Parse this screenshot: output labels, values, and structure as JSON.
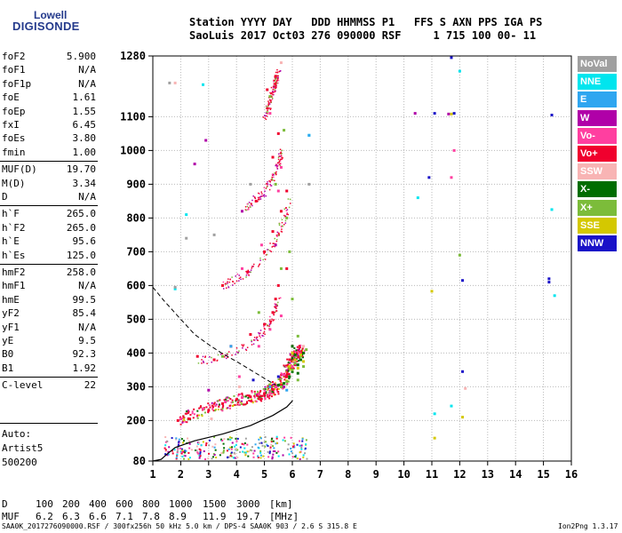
{
  "logo": {
    "line1": "Lowell",
    "line2": "DIGISONDE"
  },
  "header": {
    "line1": "Station YYYY DAY   DDD HHMMSS P1   FFS S AXN PPS IGA PS",
    "line2": "SaoLuis 2017 Oct03 276 090000 RSF     1 715 100 00- 11"
  },
  "params": [
    {
      "label": "foF2",
      "value": "5.900"
    },
    {
      "label": "foF1",
      "value": "N/A"
    },
    {
      "label": "foF1p",
      "value": "N/A"
    },
    {
      "label": "foE",
      "value": "1.61"
    },
    {
      "label": "foEp",
      "value": "1.55"
    },
    {
      "label": "fxI",
      "value": "6.45"
    },
    {
      "label": "foEs",
      "value": "3.80"
    },
    {
      "label": "fmin",
      "value": "1.00"
    },
    {
      "label": "MUF(D)",
      "value": "19.70"
    },
    {
      "label": "M(D)",
      "value": "3.34"
    },
    {
      "label": "D",
      "value": "N/A"
    },
    {
      "label": "h`F",
      "value": "265.0"
    },
    {
      "label": "h`F2",
      "value": "265.0"
    },
    {
      "label": "h`E",
      "value": "95.6"
    },
    {
      "label": "h`Es",
      "value": "125.0"
    },
    {
      "label": "hmF2",
      "value": "258.0"
    },
    {
      "label": "hmF1",
      "value": "N/A"
    },
    {
      "label": "hmE",
      "value": "99.5"
    },
    {
      "label": "yF2",
      "value": "85.4"
    },
    {
      "label": "yF1",
      "value": "N/A"
    },
    {
      "label": "yE",
      "value": "9.5"
    },
    {
      "label": "B0",
      "value": "92.3"
    },
    {
      "label": "B1",
      "value": "1.92"
    },
    {
      "label": "C-level",
      "value": "22"
    }
  ],
  "autoscaling": {
    "line1": "Auto:",
    "line2": "Artist5",
    "line3": "500200"
  },
  "legend": [
    {
      "label": "NoVal",
      "color": "#a0a0a0"
    },
    {
      "label": "NNE",
      "color": "#00e5ee"
    },
    {
      "label": "E",
      "color": "#2fa6f0"
    },
    {
      "label": "W",
      "color": "#b000a8"
    },
    {
      "label": "Vo-",
      "color": "#ff3fa0"
    },
    {
      "label": "Vo+",
      "color": "#f0002e"
    },
    {
      "label": "SSW",
      "color": "#f8b4b4"
    },
    {
      "label": "X-",
      "color": "#006d00"
    },
    {
      "label": "X+",
      "color": "#7cbc3a"
    },
    {
      "label": "SSE",
      "color": "#d4c800"
    },
    {
      "label": "NNW",
      "color": "#1a12c8"
    }
  ],
  "muf_table": {
    "row1_label": "D",
    "row1_values": [
      "100",
      "200",
      "400",
      "600",
      "800",
      "1000",
      "1500",
      "3000",
      "[km]"
    ],
    "row2_label": "MUF",
    "row2_values": [
      "6.2",
      "6.3",
      "6.6",
      "7.1",
      "7.8",
      "8.9",
      "11.9",
      "19.7",
      "[MHz]"
    ]
  },
  "footer": {
    "left": "SAA0K_2017276090000.RSF / 300fx256h 50 kHz 5.0 km / DPS-4 SAA0K 903 / 2.6 S 315.8 E",
    "right": "Ion2Png 1.3.17"
  },
  "chart_data": {
    "type": "scatter",
    "xlim": [
      1,
      16
    ],
    "ylim": [
      80,
      1280
    ],
    "x_ticks": [
      1,
      2,
      3,
      4,
      5,
      6,
      7,
      8,
      9,
      10,
      11,
      12,
      13,
      14,
      15,
      16
    ],
    "y_ticks": [
      80,
      200,
      300,
      400,
      500,
      600,
      700,
      800,
      900,
      1000,
      1100,
      1280
    ],
    "grid": true,
    "legend_position": "right",
    "series": [
      {
        "name": "Vo+",
        "points": [
          [
            1.9,
            200
          ],
          [
            2.3,
            205
          ],
          [
            3.0,
            230
          ],
          [
            3.5,
            250
          ],
          [
            4.0,
            262
          ],
          [
            4.5,
            270
          ],
          [
            5.0,
            280
          ],
          [
            5.3,
            292
          ],
          [
            5.6,
            305
          ],
          [
            5.8,
            330
          ],
          [
            5.9,
            380
          ],
          [
            6.0,
            420
          ],
          [
            2.6,
            390
          ],
          [
            3.2,
            380
          ],
          [
            3.8,
            420
          ],
          [
            4.5,
            455
          ],
          [
            5.0,
            485
          ],
          [
            5.3,
            520
          ],
          [
            5.4,
            560
          ],
          [
            5.5,
            600
          ],
          [
            5.8,
            650
          ],
          [
            3.5,
            600
          ],
          [
            4.4,
            640
          ],
          [
            5.0,
            700
          ],
          [
            5.3,
            760
          ],
          [
            5.6,
            820
          ],
          [
            5.8,
            880
          ],
          [
            4.7,
            850
          ],
          [
            5.3,
            980
          ],
          [
            5.5,
            1050
          ],
          [
            5.1,
            1180
          ],
          [
            5.4,
            1220
          ]
        ]
      },
      {
        "name": "Vo-",
        "points": [
          [
            2.0,
            205
          ],
          [
            2.8,
            235
          ],
          [
            3.6,
            255
          ],
          [
            4.2,
            268
          ],
          [
            4.8,
            278
          ],
          [
            5.4,
            300
          ],
          [
            5.7,
            335
          ],
          [
            6.0,
            360
          ],
          [
            4.1,
            330
          ],
          [
            4.8,
            420
          ],
          [
            5.2,
            470
          ],
          [
            5.6,
            510
          ],
          [
            4.2,
            650
          ],
          [
            4.9,
            720
          ],
          [
            5.5,
            880
          ],
          [
            5.6,
            950
          ],
          [
            5.2,
            1110
          ],
          [
            11.8,
            1000
          ],
          [
            11.7,
            920
          ]
        ]
      },
      {
        "name": "X-",
        "points": [
          [
            5.7,
            310
          ],
          [
            5.9,
            330
          ],
          [
            6.0,
            345
          ],
          [
            6.2,
            365
          ],
          [
            6.3,
            380
          ],
          [
            6.1,
            395
          ],
          [
            6.4,
            400
          ],
          [
            6.2,
            340
          ],
          [
            5.5,
            305
          ],
          [
            6.0,
            420
          ]
        ]
      },
      {
        "name": "X+",
        "points": [
          [
            5.6,
            300
          ],
          [
            5.8,
            315
          ],
          [
            6.0,
            350
          ],
          [
            6.1,
            370
          ],
          [
            6.3,
            390
          ],
          [
            6.5,
            410
          ],
          [
            6.4,
            360
          ],
          [
            6.2,
            320
          ],
          [
            5.6,
            650
          ],
          [
            5.9,
            700
          ],
          [
            5.8,
            800
          ],
          [
            5.4,
            900
          ],
          [
            6.0,
            560
          ],
          [
            5.7,
            1060
          ],
          [
            12.0,
            690
          ],
          [
            3.5,
            390
          ],
          [
            4.8,
            520
          ],
          [
            6.2,
            450
          ],
          [
            5.2,
            1160
          ]
        ]
      },
      {
        "name": "SSE",
        "points": [
          [
            5.9,
            360
          ],
          [
            6.1,
            380
          ],
          [
            6.3,
            395
          ],
          [
            6.0,
            400
          ],
          [
            6.4,
            375
          ],
          [
            6.2,
            355
          ],
          [
            11.7,
            1108
          ],
          [
            11.0,
            583
          ],
          [
            12.1,
            210
          ],
          [
            11.1,
            148
          ]
        ]
      },
      {
        "name": "SSW",
        "points": [
          [
            3.1,
            205
          ],
          [
            4.1,
            300
          ],
          [
            5.6,
            1260
          ],
          [
            12.2,
            295
          ],
          [
            6.4,
            420
          ],
          [
            1.8,
            1200
          ]
        ]
      },
      {
        "name": "W",
        "points": [
          [
            4.2,
            820
          ],
          [
            5.4,
            720
          ],
          [
            2.9,
            1030
          ],
          [
            2.5,
            960
          ],
          [
            10.4,
            1110
          ],
          [
            11.6,
            1108
          ],
          [
            3.0,
            290
          ],
          [
            5.7,
            300
          ]
        ]
      },
      {
        "name": "NNE",
        "points": [
          [
            12.0,
            1235
          ],
          [
            10.5,
            860
          ],
          [
            15.4,
            570
          ],
          [
            15.3,
            825
          ],
          [
            11.1,
            220
          ],
          [
            11.7,
            243
          ],
          [
            6.6,
            1045
          ],
          [
            2.8,
            1195
          ],
          [
            2.2,
            810
          ],
          [
            1.8,
            590
          ]
        ]
      },
      {
        "name": "E",
        "points": [
          [
            5.2,
            300
          ],
          [
            5.8,
            290
          ],
          [
            6.6,
            1045
          ],
          [
            3.8,
            420
          ]
        ]
      },
      {
        "name": "NNW",
        "points": [
          [
            11.7,
            1275
          ],
          [
            11.8,
            1110
          ],
          [
            11.1,
            1110
          ],
          [
            12.1,
            615
          ],
          [
            15.2,
            610
          ],
          [
            15.3,
            1105
          ],
          [
            15.2,
            620
          ],
          [
            12.1,
            345
          ],
          [
            10.9,
            920
          ],
          [
            5.5,
            330
          ],
          [
            4.6,
            320
          ]
        ]
      },
      {
        "name": "NoVal",
        "points": [
          [
            1.6,
            1200
          ],
          [
            2.2,
            740
          ],
          [
            3.2,
            750
          ],
          [
            4.5,
            900
          ],
          [
            6.6,
            900
          ],
          [
            1.8,
            595
          ]
        ]
      }
    ],
    "layer_band": {
      "x_range": [
        1.4,
        6.5
      ],
      "h_range": [
        88,
        155
      ]
    },
    "profile_line": [
      [
        1.0,
        80
      ],
      [
        1.3,
        85
      ],
      [
        1.5,
        100
      ],
      [
        1.8,
        120
      ],
      [
        2.5,
        140
      ],
      [
        3.5,
        160
      ],
      [
        4.5,
        185
      ],
      [
        5.3,
        215
      ],
      [
        5.8,
        240
      ],
      [
        6.0,
        258
      ],
      [
        6.0,
        260
      ]
    ],
    "dashed_line": [
      [
        1.0,
        595
      ],
      [
        1.4,
        555
      ],
      [
        2.0,
        500
      ],
      [
        2.5,
        455
      ],
      [
        3.0,
        425
      ],
      [
        3.5,
        398
      ],
      [
        4.0,
        375
      ],
      [
        4.5,
        350
      ],
      [
        5.0,
        325
      ],
      [
        5.4,
        305
      ]
    ]
  }
}
